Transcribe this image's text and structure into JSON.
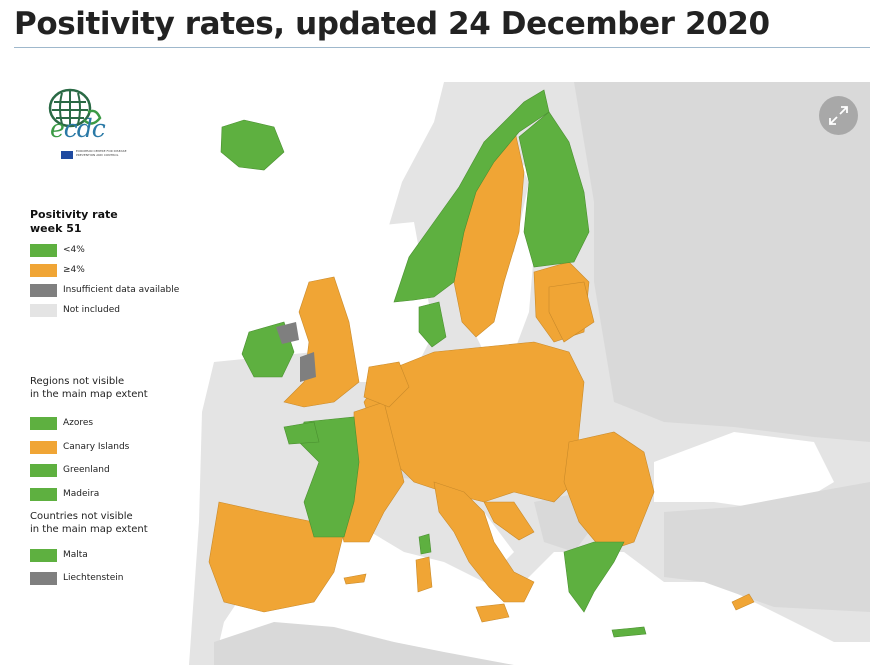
{
  "page": {
    "title": "Positivity rates, updated 24 December 2020"
  },
  "logo": {
    "word_e": "e",
    "word_rest": "cdc",
    "small_text": "EUROPEAN CENTRE FOR DISEASE PREVENTION AND CONTROL"
  },
  "legend": {
    "title_line1": "Positivity rate",
    "title_line2": "week 51",
    "items": [
      {
        "label": "<4%",
        "color": "#5eb040"
      },
      {
        "label": "≥4%",
        "color": "#f0a535"
      },
      {
        "label": "Insufficient data available",
        "color": "#7f7f7f"
      },
      {
        "label": "Not included",
        "color": "#e4e4e4"
      }
    ]
  },
  "regions_section": {
    "title_line1": "Regions not visible",
    "title_line2": "in the main map extent",
    "items": [
      {
        "label": "Azores",
        "color": "#5eb040"
      },
      {
        "label": "Canary Islands",
        "color": "#f0a535"
      },
      {
        "label": "Greenland",
        "color": "#5eb040"
      },
      {
        "label": "Madeira",
        "color": "#5eb040"
      }
    ]
  },
  "countries_section": {
    "title_line1": "Countries not visible",
    "title_line2": "in the main map extent",
    "items": [
      {
        "label": "Malta",
        "color": "#5eb040"
      },
      {
        "label": "Liechtenstein",
        "color": "#7f7f7f"
      }
    ]
  },
  "colors": {
    "green": "#5eb040",
    "orange": "#f0a535",
    "grey": "#7f7f7f",
    "land_not_included": "#e4e4e4",
    "sea": "#ffffff"
  },
  "controls": {
    "expand_icon": "expand-arrows-icon"
  }
}
